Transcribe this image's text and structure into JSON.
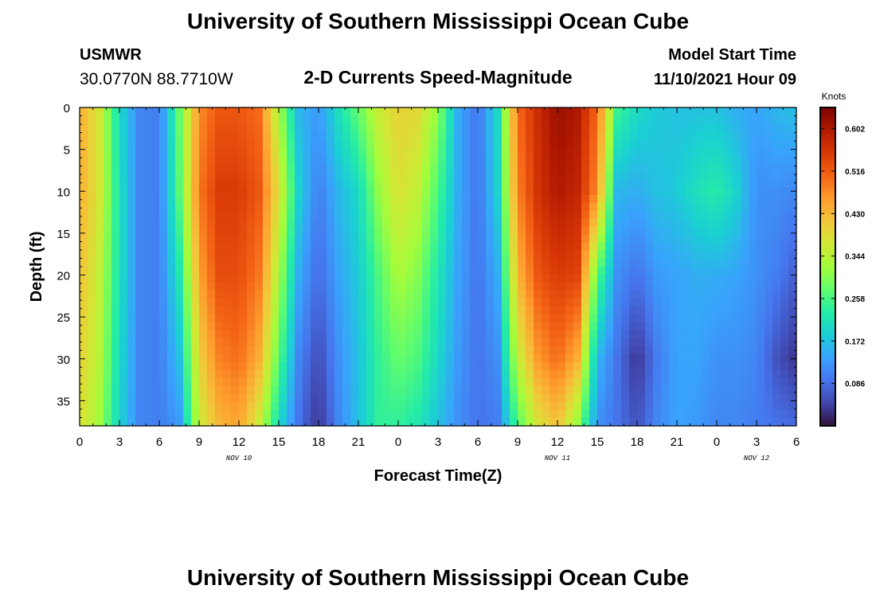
{
  "header": {
    "title": "University of Southern Mississippi Ocean Cube",
    "station_id": "USMWR",
    "station_coords": "30.0770N  88.7710W",
    "plot_title": "2-D Currents Speed-Magnitude",
    "model_start_label": "Model Start Time",
    "model_start_value": "11/10/2021 Hour 09"
  },
  "footer": {
    "title": "University of Southern Mississippi Ocean Cube"
  },
  "chart_data": {
    "type": "heatmap",
    "title": "2-D Currents Speed-Magnitude",
    "xlabel": "Forecast Time(Z)",
    "ylabel": "Depth (ft)",
    "x_unit": "hours since Nov 10 00Z",
    "xlim": [
      0,
      54
    ],
    "ylim": [
      0,
      38
    ],
    "y_inverted": true,
    "x_ticks": [
      {
        "value": 0,
        "label": "0"
      },
      {
        "value": 3,
        "label": "3"
      },
      {
        "value": 6,
        "label": "6"
      },
      {
        "value": 9,
        "label": "9"
      },
      {
        "value": 12,
        "label": "12"
      },
      {
        "value": 15,
        "label": "15"
      },
      {
        "value": 18,
        "label": "18"
      },
      {
        "value": 21,
        "label": "21"
      },
      {
        "value": 24,
        "label": "0"
      },
      {
        "value": 27,
        "label": "3"
      },
      {
        "value": 30,
        "label": "6"
      },
      {
        "value": 33,
        "label": "9"
      },
      {
        "value": 36,
        "label": "12"
      },
      {
        "value": 39,
        "label": "15"
      },
      {
        "value": 42,
        "label": "18"
      },
      {
        "value": 45,
        "label": "21"
      },
      {
        "value": 48,
        "label": "0"
      },
      {
        "value": 51,
        "label": "3"
      },
      {
        "value": 54,
        "label": "6"
      }
    ],
    "date_labels": [
      {
        "value": 12,
        "label": "NOV 10"
      },
      {
        "value": 36,
        "label": "NOV 11"
      },
      {
        "value": 51,
        "label": "NOV 12"
      }
    ],
    "y_ticks": [
      0,
      5,
      10,
      15,
      20,
      25,
      30,
      35
    ],
    "colorbar": {
      "label": "Knots",
      "min": 0.0,
      "max": 0.645,
      "ticks": [
        "0.602",
        "0.516",
        "0.430",
        "0.344",
        "0.258",
        "0.172",
        "0.086"
      ],
      "tick_values": [
        0.602,
        0.516,
        0.43,
        0.344,
        0.258,
        0.172,
        0.086
      ],
      "colors": [
        "#30123b",
        "#4145ab",
        "#4675ed",
        "#39a2fc",
        "#1bcfd4",
        "#24eca6",
        "#61fc6c",
        "#a4fc3b",
        "#d1e834",
        "#f3c63a",
        "#fe9b2d",
        "#f36315",
        "#d93806",
        "#b11901",
        "#7a0403"
      ]
    },
    "depth_samples_ft": [
      0,
      10,
      20,
      30,
      38
    ],
    "speed_profiles": [
      {
        "t": 0.0,
        "v": [
          0.44,
          0.44,
          0.42,
          0.4,
          0.38
        ]
      },
      {
        "t": 1.5,
        "v": [
          0.37,
          0.37,
          0.35,
          0.34,
          0.32
        ]
      },
      {
        "t": 3.0,
        "v": [
          0.2,
          0.21,
          0.21,
          0.2,
          0.19
        ]
      },
      {
        "t": 4.5,
        "v": [
          0.11,
          0.11,
          0.11,
          0.11,
          0.11
        ]
      },
      {
        "t": 6.0,
        "v": [
          0.1,
          0.1,
          0.1,
          0.1,
          0.1
        ]
      },
      {
        "t": 7.5,
        "v": [
          0.28,
          0.27,
          0.22,
          0.17,
          0.13
        ]
      },
      {
        "t": 9.0,
        "v": [
          0.47,
          0.49,
          0.45,
          0.4,
          0.36
        ]
      },
      {
        "t": 10.5,
        "v": [
          0.52,
          0.55,
          0.53,
          0.48,
          0.43
        ]
      },
      {
        "t": 12.0,
        "v": [
          0.52,
          0.55,
          0.53,
          0.5,
          0.45
        ]
      },
      {
        "t": 13.5,
        "v": [
          0.5,
          0.52,
          0.49,
          0.44,
          0.36
        ]
      },
      {
        "t": 15.0,
        "v": [
          0.33,
          0.38,
          0.33,
          0.27,
          0.2
        ]
      },
      {
        "t": 16.5,
        "v": [
          0.16,
          0.19,
          0.15,
          0.11,
          0.09
        ]
      },
      {
        "t": 18.0,
        "v": [
          0.13,
          0.1,
          0.08,
          0.05,
          0.03
        ]
      },
      {
        "t": 19.5,
        "v": [
          0.21,
          0.16,
          0.14,
          0.12,
          0.11
        ]
      },
      {
        "t": 21.0,
        "v": [
          0.28,
          0.2,
          0.18,
          0.17,
          0.17
        ]
      },
      {
        "t": 22.5,
        "v": [
          0.36,
          0.31,
          0.26,
          0.24,
          0.24
        ]
      },
      {
        "t": 24.0,
        "v": [
          0.4,
          0.38,
          0.33,
          0.28,
          0.24
        ]
      },
      {
        "t": 25.5,
        "v": [
          0.39,
          0.35,
          0.3,
          0.26,
          0.22
        ]
      },
      {
        "t": 27.0,
        "v": [
          0.31,
          0.26,
          0.22,
          0.2,
          0.17
        ]
      },
      {
        "t": 28.5,
        "v": [
          0.15,
          0.15,
          0.14,
          0.13,
          0.12
        ]
      },
      {
        "t": 30.0,
        "v": [
          0.09,
          0.09,
          0.09,
          0.09,
          0.09
        ]
      },
      {
        "t": 31.5,
        "v": [
          0.2,
          0.19,
          0.15,
          0.12,
          0.1
        ]
      },
      {
        "t": 33.0,
        "v": [
          0.5,
          0.48,
          0.43,
          0.35,
          0.26
        ]
      },
      {
        "t": 34.5,
        "v": [
          0.57,
          0.56,
          0.52,
          0.46,
          0.37
        ]
      },
      {
        "t": 36.0,
        "v": [
          0.62,
          0.6,
          0.55,
          0.5,
          0.42
        ]
      },
      {
        "t": 37.5,
        "v": [
          0.6,
          0.58,
          0.54,
          0.44,
          0.31
        ]
      },
      {
        "t": 39.0,
        "v": [
          0.5,
          0.47,
          0.27,
          0.16,
          0.12
        ]
      },
      {
        "t": 40.5,
        "v": [
          0.25,
          0.16,
          0.12,
          0.09,
          0.09
        ]
      },
      {
        "t": 42.0,
        "v": [
          0.2,
          0.15,
          0.09,
          0.03,
          0.06
        ]
      },
      {
        "t": 43.5,
        "v": [
          0.18,
          0.17,
          0.13,
          0.1,
          0.11
        ]
      },
      {
        "t": 45.0,
        "v": [
          0.17,
          0.18,
          0.14,
          0.14,
          0.14
        ]
      },
      {
        "t": 46.5,
        "v": [
          0.17,
          0.21,
          0.15,
          0.14,
          0.13
        ]
      },
      {
        "t": 48.0,
        "v": [
          0.17,
          0.23,
          0.15,
          0.12,
          0.11
        ]
      },
      {
        "t": 49.5,
        "v": [
          0.15,
          0.19,
          0.14,
          0.12,
          0.11
        ]
      },
      {
        "t": 51.0,
        "v": [
          0.14,
          0.12,
          0.12,
          0.11,
          0.1
        ]
      },
      {
        "t": 52.5,
        "v": [
          0.16,
          0.12,
          0.1,
          0.06,
          0.09
        ]
      },
      {
        "t": 54.0,
        "v": [
          0.17,
          0.11,
          0.07,
          0.03,
          0.08
        ]
      }
    ]
  }
}
